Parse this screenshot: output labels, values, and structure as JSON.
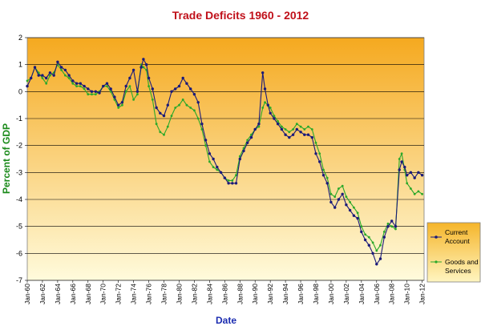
{
  "chart_data": {
    "type": "line",
    "title": "Trade Deficits 1960 - 2012",
    "xlabel": "Date",
    "ylabel": "Percent of GDP",
    "ylim": [
      -7,
      2
    ],
    "xlim": [
      1960,
      2012.25
    ],
    "yticks": [
      2,
      1,
      0,
      -1,
      -2,
      -3,
      -4,
      -5,
      -6,
      -7
    ],
    "xticks": [
      "Jan-60",
      "Jan-62",
      "Jan-64",
      "Jan-66",
      "Jan-68",
      "Jan-70",
      "Jan-72",
      "Jan-74",
      "Jan-76",
      "Jan-78",
      "Jan-80",
      "Jan-82",
      "Jan-84",
      "Jan-86",
      "Jan-88",
      "Jan-90",
      "Jan-92",
      "Jan-94",
      "Jan-96",
      "Jan-98",
      "Jan-00",
      "Jan-02",
      "Jan-04",
      "Jan-06",
      "Jan-08",
      "Jan-10",
      "Jan-12"
    ],
    "grid": "horizontal",
    "legend_position": "right",
    "colors": {
      "title": "#c0101a",
      "axis_title_y": "#1a8a1a",
      "axis_title_x": "#1a2bb0",
      "current_account": "#1a1a7a",
      "goods_services": "#2aa82a",
      "plot_top": "#f5a91f",
      "plot_bottom": "#fffbdc",
      "legend_top": "#f5b52a",
      "legend_bottom": "#fff5c0"
    },
    "series": [
      {
        "name": "Current Account",
        "points": [
          [
            1960,
            0.2
          ],
          [
            1960.5,
            0.5
          ],
          [
            1961,
            0.9
          ],
          [
            1961.5,
            0.6
          ],
          [
            1962,
            0.6
          ],
          [
            1962.5,
            0.5
          ],
          [
            1963,
            0.7
          ],
          [
            1963.5,
            0.6
          ],
          [
            1964,
            1.1
          ],
          [
            1964.5,
            0.9
          ],
          [
            1965,
            0.8
          ],
          [
            1965.5,
            0.6
          ],
          [
            1966,
            0.4
          ],
          [
            1966.5,
            0.3
          ],
          [
            1967,
            0.3
          ],
          [
            1967.5,
            0.2
          ],
          [
            1968,
            0.1
          ],
          [
            1968.5,
            0.0
          ],
          [
            1969,
            0.0
          ],
          [
            1969.5,
            -0.05
          ],
          [
            1970,
            0.2
          ],
          [
            1970.5,
            0.3
          ],
          [
            1971,
            0.1
          ],
          [
            1971.5,
            -0.2
          ],
          [
            1972,
            -0.5
          ],
          [
            1972.5,
            -0.4
          ],
          [
            1973,
            0.2
          ],
          [
            1973.5,
            0.5
          ],
          [
            1974,
            0.8
          ],
          [
            1974.5,
            0.0
          ],
          [
            1975,
            0.9
          ],
          [
            1975.3,
            1.2
          ],
          [
            1975.7,
            1.0
          ],
          [
            1976,
            0.5
          ],
          [
            1976.5,
            0.1
          ],
          [
            1977,
            -0.6
          ],
          [
            1977.5,
            -0.8
          ],
          [
            1978,
            -0.9
          ],
          [
            1978.5,
            -0.5
          ],
          [
            1979,
            0.0
          ],
          [
            1979.5,
            0.1
          ],
          [
            1980,
            0.2
          ],
          [
            1980.5,
            0.5
          ],
          [
            1981,
            0.3
          ],
          [
            1981.5,
            0.1
          ],
          [
            1982,
            -0.1
          ],
          [
            1982.5,
            -0.4
          ],
          [
            1983,
            -1.2
          ],
          [
            1983.5,
            -1.8
          ],
          [
            1984,
            -2.3
          ],
          [
            1984.5,
            -2.5
          ],
          [
            1985,
            -2.8
          ],
          [
            1985.5,
            -3.0
          ],
          [
            1986,
            -3.2
          ],
          [
            1986.5,
            -3.4
          ],
          [
            1987,
            -3.4
          ],
          [
            1987.5,
            -3.4
          ],
          [
            1988,
            -2.5
          ],
          [
            1988.5,
            -2.2
          ],
          [
            1989,
            -1.9
          ],
          [
            1989.5,
            -1.7
          ],
          [
            1990,
            -1.4
          ],
          [
            1990.5,
            -1.2
          ],
          [
            1991,
            0.7
          ],
          [
            1991.3,
            0.1
          ],
          [
            1991.7,
            -0.5
          ],
          [
            1992,
            -0.8
          ],
          [
            1992.5,
            -1.0
          ],
          [
            1993,
            -1.2
          ],
          [
            1993.5,
            -1.4
          ],
          [
            1994,
            -1.6
          ],
          [
            1994.5,
            -1.7
          ],
          [
            1995,
            -1.6
          ],
          [
            1995.5,
            -1.4
          ],
          [
            1996,
            -1.5
          ],
          [
            1996.5,
            -1.6
          ],
          [
            1997,
            -1.6
          ],
          [
            1997.5,
            -1.7
          ],
          [
            1998,
            -2.3
          ],
          [
            1998.5,
            -2.6
          ],
          [
            1999,
            -3.1
          ],
          [
            1999.5,
            -3.4
          ],
          [
            2000,
            -4.1
          ],
          [
            2000.5,
            -4.3
          ],
          [
            2001,
            -4.0
          ],
          [
            2001.5,
            -3.8
          ],
          [
            2002,
            -4.2
          ],
          [
            2002.5,
            -4.4
          ],
          [
            2003,
            -4.6
          ],
          [
            2003.5,
            -4.7
          ],
          [
            2004,
            -5.2
          ],
          [
            2004.5,
            -5.5
          ],
          [
            2005,
            -5.7
          ],
          [
            2005.5,
            -6.0
          ],
          [
            2006,
            -6.4
          ],
          [
            2006.5,
            -6.2
          ],
          [
            2007,
            -5.4
          ],
          [
            2007.5,
            -5.0
          ],
          [
            2008,
            -4.8
          ],
          [
            2008.5,
            -5.0
          ],
          [
            2009,
            -2.9
          ],
          [
            2009.3,
            -2.6
          ],
          [
            2009.7,
            -2.8
          ],
          [
            2010,
            -3.1
          ],
          [
            2010.5,
            -3.0
          ],
          [
            2011,
            -3.2
          ],
          [
            2011.5,
            -3.0
          ],
          [
            2012,
            -3.1
          ]
        ]
      },
      {
        "name": "Goods and Services",
        "points": [
          [
            1960,
            0.4
          ],
          [
            1960.5,
            0.5
          ],
          [
            1961,
            0.9
          ],
          [
            1961.5,
            0.7
          ],
          [
            1962,
            0.5
          ],
          [
            1962.5,
            0.3
          ],
          [
            1963,
            0.6
          ],
          [
            1963.5,
            0.7
          ],
          [
            1964,
            1.0
          ],
          [
            1964.5,
            0.8
          ],
          [
            1965,
            0.6
          ],
          [
            1965.5,
            0.5
          ],
          [
            1966,
            0.3
          ],
          [
            1966.5,
            0.2
          ],
          [
            1967,
            0.2
          ],
          [
            1967.5,
            0.1
          ],
          [
            1968,
            -0.1
          ],
          [
            1968.5,
            -0.1
          ],
          [
            1969,
            -0.1
          ],
          [
            1969.5,
            0.0
          ],
          [
            1970,
            0.2
          ],
          [
            1970.5,
            0.2
          ],
          [
            1971,
            0.0
          ],
          [
            1971.5,
            -0.3
          ],
          [
            1972,
            -0.6
          ],
          [
            1972.5,
            -0.5
          ],
          [
            1973,
            0.0
          ],
          [
            1973.5,
            0.2
          ],
          [
            1974,
            -0.3
          ],
          [
            1974.5,
            -0.1
          ],
          [
            1975,
            1.0
          ],
          [
            1975.3,
            0.9
          ],
          [
            1975.7,
            0.8
          ],
          [
            1976,
            0.2
          ],
          [
            1976.5,
            -0.3
          ],
          [
            1977,
            -1.2
          ],
          [
            1977.5,
            -1.5
          ],
          [
            1978,
            -1.6
          ],
          [
            1978.5,
            -1.3
          ],
          [
            1979,
            -0.9
          ],
          [
            1979.5,
            -0.6
          ],
          [
            1980,
            -0.5
          ],
          [
            1980.5,
            -0.3
          ],
          [
            1981,
            -0.5
          ],
          [
            1981.5,
            -0.6
          ],
          [
            1982,
            -0.7
          ],
          [
            1982.5,
            -1.0
          ],
          [
            1983,
            -1.4
          ],
          [
            1983.5,
            -2.0
          ],
          [
            1984,
            -2.6
          ],
          [
            1984.5,
            -2.8
          ],
          [
            1985,
            -2.9
          ],
          [
            1985.5,
            -3.0
          ],
          [
            1986,
            -3.2
          ],
          [
            1986.5,
            -3.3
          ],
          [
            1987,
            -3.3
          ],
          [
            1987.5,
            -3.1
          ],
          [
            1988,
            -2.4
          ],
          [
            1988.5,
            -2.1
          ],
          [
            1989,
            -1.8
          ],
          [
            1989.5,
            -1.6
          ],
          [
            1990,
            -1.4
          ],
          [
            1990.5,
            -1.3
          ],
          [
            1991,
            -0.6
          ],
          [
            1991.3,
            -0.4
          ],
          [
            1991.7,
            -0.5
          ],
          [
            1992,
            -0.6
          ],
          [
            1992.5,
            -0.9
          ],
          [
            1993,
            -1.1
          ],
          [
            1993.5,
            -1.3
          ],
          [
            1994,
            -1.4
          ],
          [
            1994.5,
            -1.5
          ],
          [
            1995,
            -1.4
          ],
          [
            1995.5,
            -1.2
          ],
          [
            1996,
            -1.3
          ],
          [
            1996.5,
            -1.4
          ],
          [
            1997,
            -1.3
          ],
          [
            1997.5,
            -1.4
          ],
          [
            1998,
            -1.9
          ],
          [
            1998.5,
            -2.3
          ],
          [
            1999,
            -2.9
          ],
          [
            1999.5,
            -3.2
          ],
          [
            2000,
            -3.8
          ],
          [
            2000.5,
            -3.9
          ],
          [
            2001,
            -3.6
          ],
          [
            2001.5,
            -3.5
          ],
          [
            2002,
            -3.9
          ],
          [
            2002.5,
            -4.1
          ],
          [
            2003,
            -4.3
          ],
          [
            2003.5,
            -4.5
          ],
          [
            2004,
            -5.0
          ],
          [
            2004.5,
            -5.3
          ],
          [
            2005,
            -5.4
          ],
          [
            2005.5,
            -5.6
          ],
          [
            2006,
            -5.9
          ],
          [
            2006.5,
            -5.7
          ],
          [
            2007,
            -5.2
          ],
          [
            2007.5,
            -4.9
          ],
          [
            2008,
            -5.0
          ],
          [
            2008.5,
            -5.1
          ],
          [
            2009,
            -2.5
          ],
          [
            2009.3,
            -2.3
          ],
          [
            2009.7,
            -2.9
          ],
          [
            2010,
            -3.4
          ],
          [
            2010.5,
            -3.6
          ],
          [
            2011,
            -3.8
          ],
          [
            2011.5,
            -3.7
          ],
          [
            2012,
            -3.8
          ]
        ]
      }
    ]
  }
}
